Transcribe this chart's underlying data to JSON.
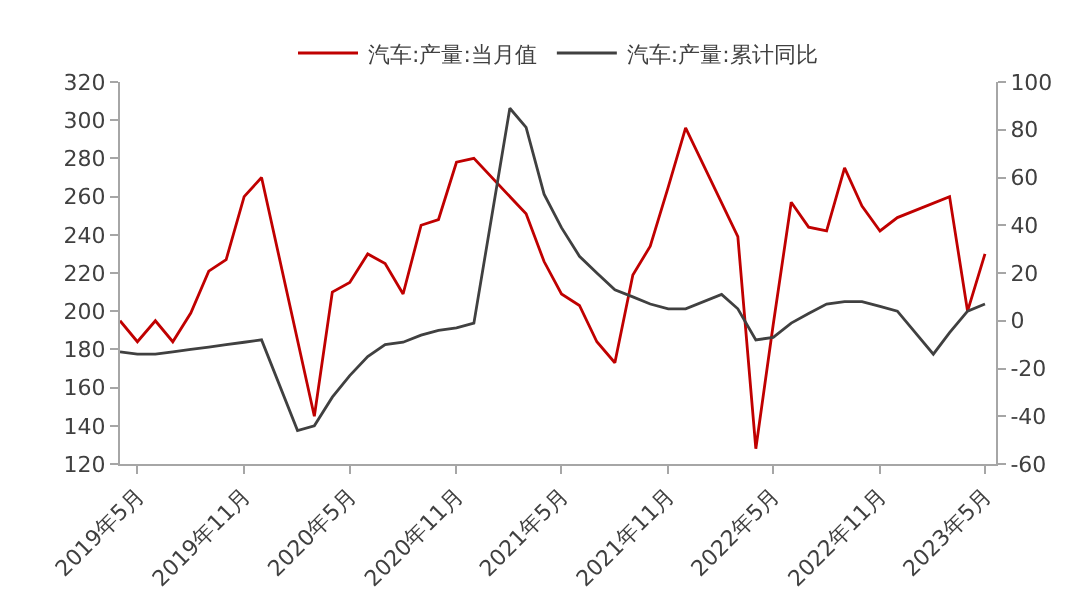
{
  "chart_data": {
    "type": "line",
    "marker": "none",
    "line_style": "solid",
    "grid": false,
    "legend": "top",
    "x": [
      "2019-04",
      "2019-05",
      "2019-06",
      "2019-07",
      "2019-08",
      "2019-09",
      "2019-10",
      "2019-11",
      "2019-12",
      "2020-02",
      "2020-03",
      "2020-04",
      "2020-05",
      "2020-06",
      "2020-07",
      "2020-08",
      "2020-09",
      "2020-10",
      "2020-11",
      "2020-12",
      "2021-02",
      "2021-03",
      "2021-04",
      "2021-05",
      "2021-06",
      "2021-07",
      "2021-08",
      "2021-09",
      "2021-10",
      "2021-11",
      "2021-12",
      "2022-02",
      "2022-03",
      "2022-04",
      "2022-05",
      "2022-06",
      "2022-07",
      "2022-08",
      "2022-09",
      "2022-10",
      "2022-11",
      "2022-12",
      "2023-02",
      "2023-03",
      "2023-04",
      "2023-05"
    ],
    "series": [
      {
        "name": "汽车:产量:当月值",
        "color": "#c00000",
        "values": [
          195,
          184,
          195,
          184,
          199,
          221,
          227,
          260,
          270,
          null,
          145,
          210,
          215,
          230,
          225,
          209,
          245,
          248,
          278,
          280,
          null,
          251,
          226,
          209,
          203,
          184,
          173,
          219,
          234,
          265,
          296,
          null,
          239,
          128,
          193,
          257,
          244,
          242,
          275,
          255,
          242,
          249,
          null,
          260,
          200,
          230
        ]
      },
      {
        "name": "汽车:产量:累计同比",
        "color": "#404040",
        "axis": "y2",
        "values": [
          -13,
          -14,
          -14,
          -13,
          -12,
          -11,
          -10,
          -9,
          -8,
          -46,
          -44,
          -32,
          -23,
          -15,
          -10,
          -9,
          -6,
          -4,
          -3,
          -1,
          89,
          81,
          53,
          39,
          27,
          20,
          13,
          10,
          7,
          5,
          5,
          11,
          5,
          -8,
          -7,
          -1,
          3,
          7,
          8,
          8,
          6,
          4,
          -14,
          -5,
          4,
          7
        ]
      }
    ],
    "xlim": [
      "2019-04",
      "2023-05-20"
    ],
    "xticks": [
      {
        "value": "2019-05",
        "label": "2019年5月"
      },
      {
        "value": "2019-11",
        "label": "2019年11月"
      },
      {
        "value": "2020-05",
        "label": "2020年5月"
      },
      {
        "value": "2020-11",
        "label": "2020年11月"
      },
      {
        "value": "2021-05",
        "label": "2021年5月"
      },
      {
        "value": "2021-11",
        "label": "2021年11月"
      },
      {
        "value": "2022-05",
        "label": "2022年5月"
      },
      {
        "value": "2022-11",
        "label": "2022年11月"
      },
      {
        "value": "2023-05",
        "label": "2023年5月"
      }
    ],
    "ylim": [
      120,
      320
    ],
    "yticks": [
      120,
      140,
      160,
      180,
      200,
      220,
      240,
      260,
      280,
      300,
      320
    ],
    "y2lim": [
      -60,
      100
    ],
    "y2ticks": [
      -60,
      -40,
      -20,
      0,
      20,
      40,
      60,
      80,
      100
    ]
  }
}
